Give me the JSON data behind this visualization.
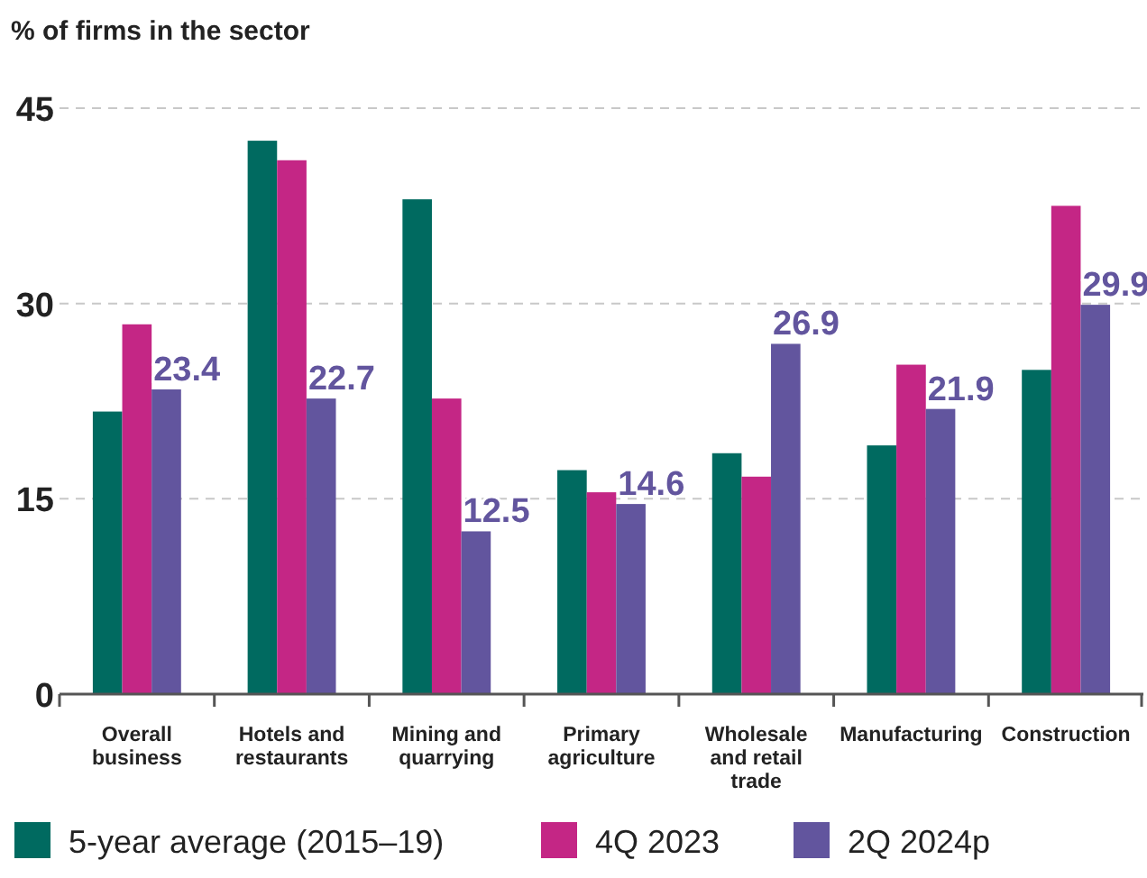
{
  "chart_data": {
    "type": "bar",
    "ylabel": "% of firms in the sector",
    "categories": [
      "Overall business",
      "Hotels and restaurants",
      "Mining and quarrying",
      "Primary agriculture",
      "Wholesale and retail trade",
      "Manufacturing",
      "Construction"
    ],
    "series": [
      {
        "name": "5-year average (2015–19)",
        "color": "#006a60",
        "values": [
          21.7,
          42.5,
          38.0,
          17.2,
          18.5,
          19.1,
          24.9
        ]
      },
      {
        "name": "4Q 2023",
        "color": "#c42685",
        "values": [
          28.4,
          41.0,
          22.7,
          15.5,
          16.7,
          25.3,
          37.5
        ]
      },
      {
        "name": "2Q 2024p",
        "color": "#62559e",
        "values": [
          23.4,
          22.7,
          12.5,
          14.6,
          26.9,
          21.9,
          29.9
        ],
        "value_labels": [
          "23.4",
          "22.7",
          "12.5",
          "14.6",
          "26.9",
          "21.9",
          "29.9"
        ]
      }
    ],
    "ylim": [
      0,
      45
    ],
    "yticks": [
      0,
      15,
      30,
      45
    ],
    "grid": "y",
    "legend": "bottom"
  }
}
